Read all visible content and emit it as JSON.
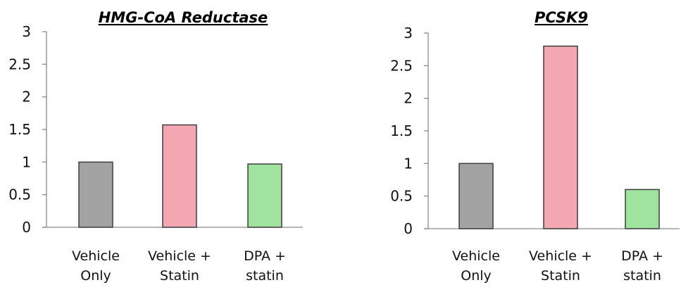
{
  "chart_data": [
    {
      "type": "bar",
      "title": "HMG-CoA Reductase",
      "xlabel": "",
      "ylabel": "",
      "categories": [
        "Vehicle Only",
        "Vehicle + Statin",
        "DPA + statin"
      ],
      "category_lines": [
        [
          "Vehicle",
          "Only"
        ],
        [
          "Vehicle +",
          "Statin"
        ],
        [
          "DPA +",
          "statin"
        ]
      ],
      "values": [
        1.0,
        1.57,
        0.97
      ],
      "ylim": [
        0,
        3
      ],
      "yticks": [
        0,
        0.5,
        1,
        1.5,
        2,
        2.5,
        3
      ],
      "ytick_labels": [
        "0",
        "0.5",
        "1",
        "1.5",
        "2",
        "2.5",
        "3"
      ],
      "bar_colors": [
        "#a3a3a3",
        "#f2a7b1",
        "#9fe39f"
      ],
      "grid": false,
      "legend": "none"
    },
    {
      "type": "bar",
      "title": "PCSK9",
      "xlabel": "",
      "ylabel": "",
      "categories": [
        "Vehicle Only",
        "Vehicle + Statin",
        "DPA + statin"
      ],
      "category_lines": [
        [
          "Vehicle",
          "Only"
        ],
        [
          "Vehicle +",
          "Statin"
        ],
        [
          "DPA +",
          "statin"
        ]
      ],
      "values": [
        1.0,
        2.8,
        0.6
      ],
      "ylim": [
        0,
        3
      ],
      "yticks": [
        0,
        0.5,
        1,
        1.5,
        2,
        2.5,
        3
      ],
      "ytick_labels": [
        "0",
        "0.5",
        "1",
        "1.5",
        "2",
        "2.5",
        "3"
      ],
      "bar_colors": [
        "#a3a3a3",
        "#f2a7b1",
        "#9fe39f"
      ],
      "grid": false,
      "legend": "none"
    }
  ]
}
